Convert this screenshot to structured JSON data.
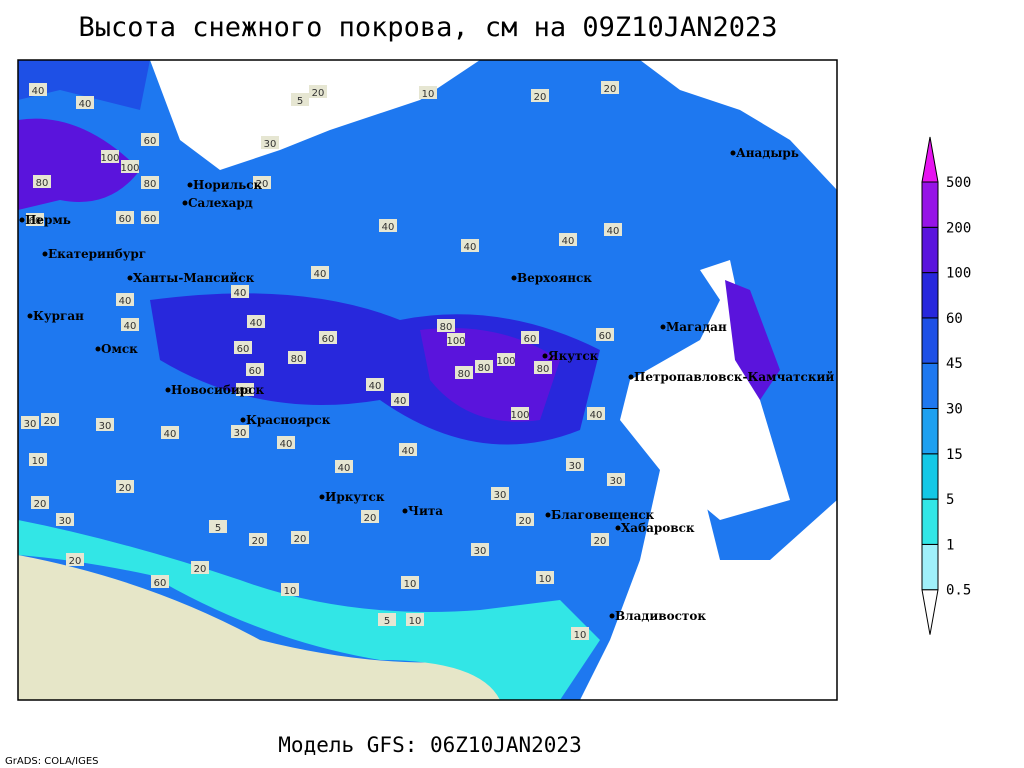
{
  "title": "Высота снежного покрова, см на 09Z10JAN2023",
  "footer": "Модель GFS: 06Z10JAN2023",
  "credit": "GrADS: COLA/IGES",
  "colorbar": {
    "levels": [
      0.5,
      1,
      5,
      15,
      30,
      45,
      60,
      100,
      200,
      500
    ],
    "colors": [
      "#ffffff",
      "#a0f0fa",
      "#32e6e6",
      "#14c8e6",
      "#1ea0f0",
      "#1e78f0",
      "#1e50e6",
      "#2828dc",
      "#5a14dc",
      "#9614e6",
      "#e614f0"
    ]
  },
  "cities": [
    "Норильск",
    "Салехард",
    "Пермь",
    "Екатеринбург",
    "Ханты-Мансийск",
    "Курган",
    "Омск",
    "Новосибирск",
    "Красноярск",
    "Иркутск",
    "Чита",
    "Благовещенск",
    "Хабаровск",
    "Владивосток",
    "Верхоянск",
    "Якутск",
    "Магадан",
    "Петропавловск-Камчатский",
    "Анадырь"
  ],
  "contour_labels": [
    40,
    40,
    60,
    80,
    100,
    100,
    80,
    60,
    60,
    60,
    40,
    40,
    30,
    20,
    30,
    10,
    20,
    20,
    30,
    20,
    40,
    40,
    40,
    60,
    60,
    80,
    80,
    60,
    40,
    30,
    20,
    10,
    5,
    20,
    20,
    20,
    40,
    40,
    40,
    40,
    80,
    100,
    80,
    80,
    100,
    100,
    80,
    60,
    60,
    40,
    30,
    30,
    20,
    10,
    10,
    10,
    5,
    10,
    20,
    30,
    40,
    40,
    40,
    40,
    30,
    20,
    10,
    5,
    30,
    20,
    20,
    20,
    60,
    40
  ]
}
